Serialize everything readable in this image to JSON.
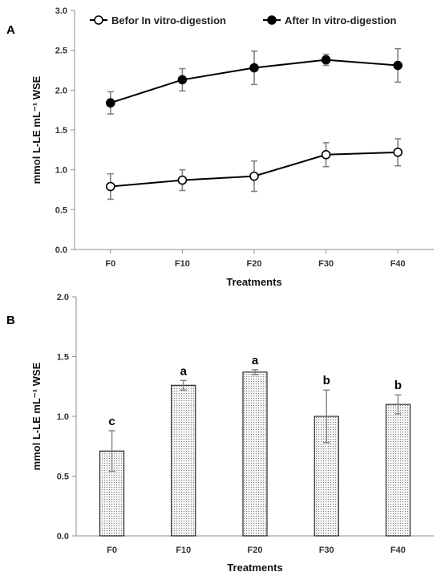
{
  "panels": {
    "a": {
      "label": "A"
    },
    "b": {
      "label": "B"
    }
  },
  "chart_data": [
    {
      "type": "line",
      "panel": "A",
      "categories": [
        "F0",
        "F10",
        "F20",
        "F30",
        "F40"
      ],
      "xlabel": "Treatments",
      "ylabel": "mmol L-LE mL⁻¹ WSE",
      "ylim": [
        0.0,
        3.0
      ],
      "yticks": [
        "0.0",
        "0.5",
        "1.0",
        "1.5",
        "2.0",
        "2.5",
        "3.0"
      ],
      "legend_position": "top",
      "series": [
        {
          "name": "Befor In vitro-digestion",
          "marker": "open-circle",
          "values": [
            0.79,
            0.87,
            0.92,
            1.19,
            1.22
          ],
          "errors": [
            0.16,
            0.13,
            0.19,
            0.15,
            0.17
          ]
        },
        {
          "name": "After In vitro-digestion",
          "marker": "filled-circle",
          "values": [
            1.84,
            2.13,
            2.28,
            2.38,
            2.31
          ],
          "errors": [
            0.14,
            0.14,
            0.21,
            0.07,
            0.21
          ]
        }
      ]
    },
    {
      "type": "bar",
      "panel": "B",
      "categories": [
        "F0",
        "F10",
        "F20",
        "F30",
        "F40"
      ],
      "xlabel": "Treatments",
      "ylabel": "mmol L-LE mL⁻¹ WSE",
      "ylim": [
        0.0,
        2.0
      ],
      "yticks": [
        "0.0",
        "0.5",
        "1.0",
        "1.5",
        "2.0"
      ],
      "bar_fill": "dotted",
      "values": [
        0.71,
        1.26,
        1.37,
        1.0,
        1.1
      ],
      "errors": [
        0.17,
        0.04,
        0.02,
        0.22,
        0.08
      ],
      "significance": [
        "c",
        "a",
        "a",
        "b",
        "b"
      ]
    }
  ]
}
